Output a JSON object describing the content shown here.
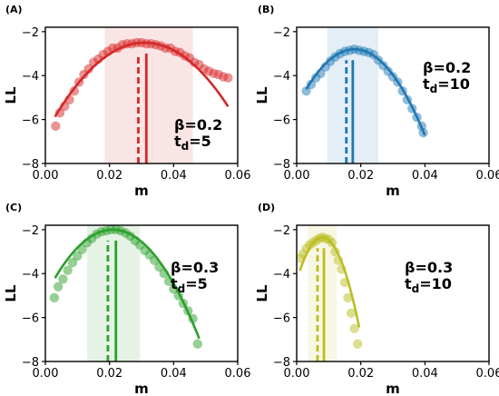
{
  "chart_data": [
    {
      "panel": "(A)",
      "type": "scatter",
      "color": "#d62728",
      "xlabel": "m",
      "ylabel": "LL",
      "xlim": [
        0,
        0.06
      ],
      "ylim": [
        -8,
        -1.8
      ],
      "xticks": [
        "0.00",
        "0.02",
        "0.04",
        "0.06"
      ],
      "yticks": [
        "-2",
        "-4",
        "-6",
        "-8"
      ],
      "x_tick_values": [
        0,
        0.02,
        0.04,
        0.06
      ],
      "y_tick_values": [
        -2,
        -4,
        -6,
        -8
      ],
      "annotation": {
        "beta": "β=0.2",
        "td_base": "t",
        "td_sub": "d",
        "td_val": "=5"
      },
      "shaded_interval": [
        0.0185,
        0.046
      ],
      "dashed_line_x": 0.029,
      "solid_line_x": 0.0315,
      "fit_curve": {
        "peak_x": 0.031,
        "peak_y": -2.5,
        "curvature": 4300,
        "x_range": [
          0.003,
          0.057
        ]
      },
      "points": [
        [
          0.0032,
          -6.3
        ],
        [
          0.0045,
          -5.7
        ],
        [
          0.006,
          -5.4
        ],
        [
          0.0075,
          -5.1
        ],
        [
          0.009,
          -4.7
        ],
        [
          0.0105,
          -4.3
        ],
        [
          0.012,
          -3.95
        ],
        [
          0.0135,
          -3.7
        ],
        [
          0.015,
          -3.4
        ],
        [
          0.0165,
          -3.25
        ],
        [
          0.018,
          -3.05
        ],
        [
          0.0195,
          -2.9
        ],
        [
          0.021,
          -2.75
        ],
        [
          0.0225,
          -2.75
        ],
        [
          0.024,
          -2.6
        ],
        [
          0.0255,
          -2.55
        ],
        [
          0.027,
          -2.55
        ],
        [
          0.0285,
          -2.5
        ],
        [
          0.03,
          -2.5
        ],
        [
          0.0315,
          -2.55
        ],
        [
          0.033,
          -2.55
        ],
        [
          0.0345,
          -2.6
        ],
        [
          0.036,
          -2.65
        ],
        [
          0.0375,
          -2.75
        ],
        [
          0.039,
          -2.75
        ],
        [
          0.0405,
          -2.9
        ],
        [
          0.042,
          -2.95
        ],
        [
          0.0435,
          -3.1
        ],
        [
          0.045,
          -3.2
        ],
        [
          0.0465,
          -3.4
        ],
        [
          0.048,
          -3.5
        ],
        [
          0.0495,
          -3.7
        ],
        [
          0.051,
          -3.8
        ],
        [
          0.0525,
          -3.9
        ],
        [
          0.054,
          -3.95
        ],
        [
          0.0555,
          -4.05
        ],
        [
          0.057,
          -4.1
        ]
      ]
    },
    {
      "panel": "(B)",
      "type": "scatter",
      "color": "#1f77b4",
      "xlabel": "m",
      "ylabel": "LL",
      "xlim": [
        0,
        0.06
      ],
      "ylim": [
        -8,
        -1.8
      ],
      "xticks": [
        "0.00",
        "0.02",
        "0.04",
        "0.06"
      ],
      "yticks": [
        "-2",
        "-4",
        "-6",
        "-8"
      ],
      "x_tick_values": [
        0,
        0.02,
        0.04,
        0.06
      ],
      "y_tick_values": [
        -2,
        -4,
        -6,
        -8
      ],
      "annotation": {
        "beta": "β=0.2",
        "td_base": "t",
        "td_sub": "d",
        "td_val": "=10"
      },
      "shaded_interval": [
        0.0095,
        0.0255
      ],
      "dashed_line_x": 0.0155,
      "solid_line_x": 0.0175,
      "fit_curve": {
        "peak_x": 0.018,
        "peak_y": -2.8,
        "curvature": 8100,
        "x_range": [
          0.003,
          0.04
        ]
      },
      "points": [
        [
          0.003,
          -4.7
        ],
        [
          0.0045,
          -4.4
        ],
        [
          0.006,
          -4.1
        ],
        [
          0.0075,
          -3.9
        ],
        [
          0.009,
          -3.6
        ],
        [
          0.0105,
          -3.35
        ],
        [
          0.012,
          -3.15
        ],
        [
          0.0135,
          -3.0
        ],
        [
          0.015,
          -2.9
        ],
        [
          0.0165,
          -2.85
        ],
        [
          0.018,
          -2.8
        ],
        [
          0.0195,
          -2.85
        ],
        [
          0.021,
          -2.9
        ],
        [
          0.0225,
          -2.95
        ],
        [
          0.024,
          -3.05
        ],
        [
          0.0255,
          -3.3
        ],
        [
          0.027,
          -3.55
        ],
        [
          0.0285,
          -3.8
        ],
        [
          0.03,
          -4.05
        ],
        [
          0.0315,
          -4.3
        ],
        [
          0.033,
          -4.7
        ],
        [
          0.0345,
          -5.1
        ],
        [
          0.036,
          -5.5
        ],
        [
          0.0375,
          -5.9
        ],
        [
          0.039,
          -6.3
        ],
        [
          0.0395,
          -6.6
        ]
      ]
    },
    {
      "panel": "(C)",
      "type": "scatter",
      "color": "#2ca02c",
      "xlabel": "m",
      "ylabel": "LL",
      "xlim": [
        0,
        0.06
      ],
      "ylim": [
        -8,
        -1.8
      ],
      "xticks": [
        "0.00",
        "0.02",
        "0.04",
        "0.06"
      ],
      "yticks": [
        "-2",
        "-4",
        "-6",
        "-8"
      ],
      "x_tick_values": [
        0,
        0.02,
        0.04,
        0.06
      ],
      "y_tick_values": [
        -2,
        -4,
        -6,
        -8
      ],
      "annotation": {
        "beta": "β=0.3",
        "td_base": "t",
        "td_sub": "d",
        "td_val": "=5"
      },
      "shaded_interval": [
        0.013,
        0.0295
      ],
      "dashed_line_x": 0.0195,
      "solid_line_x": 0.022,
      "fit_curve": {
        "peak_x": 0.021,
        "peak_y": -2.0,
        "curvature": 6800,
        "x_range": [
          0.003,
          0.048
        ]
      },
      "points": [
        [
          0.0028,
          -5.1
        ],
        [
          0.004,
          -4.6
        ],
        [
          0.0055,
          -4.25
        ],
        [
          0.007,
          -3.85
        ],
        [
          0.0085,
          -3.5
        ],
        [
          0.01,
          -3.2
        ],
        [
          0.0115,
          -2.9
        ],
        [
          0.013,
          -2.6
        ],
        [
          0.0145,
          -2.4
        ],
        [
          0.016,
          -2.2
        ],
        [
          0.0175,
          -2.1
        ],
        [
          0.019,
          -2.05
        ],
        [
          0.0205,
          -2.0
        ],
        [
          0.022,
          -2.0
        ],
        [
          0.0235,
          -2.05
        ],
        [
          0.025,
          -2.15
        ],
        [
          0.0265,
          -2.3
        ],
        [
          0.028,
          -2.5
        ],
        [
          0.0295,
          -2.7
        ],
        [
          0.031,
          -2.95
        ],
        [
          0.0325,
          -3.15
        ],
        [
          0.034,
          -3.4
        ],
        [
          0.0355,
          -3.7
        ],
        [
          0.037,
          -4.0
        ],
        [
          0.0385,
          -4.35
        ],
        [
          0.04,
          -4.7
        ],
        [
          0.0415,
          -5.0
        ],
        [
          0.043,
          -5.35
        ],
        [
          0.0445,
          -5.7
        ],
        [
          0.046,
          -6.05
        ],
        [
          0.0475,
          -7.2
        ]
      ]
    },
    {
      "panel": "(D)",
      "type": "scatter",
      "color": "#bcbd22",
      "xlabel": "m",
      "ylabel": "LL",
      "xlim": [
        0,
        0.06
      ],
      "ylim": [
        -8,
        -1.8
      ],
      "xticks": [
        "0.00",
        "0.02",
        "0.04",
        "0.06"
      ],
      "yticks": [
        "-2",
        "-4",
        "-6",
        "-8"
      ],
      "x_tick_values": [
        0,
        0.02,
        0.04,
        0.06
      ],
      "y_tick_values": [
        -2,
        -4,
        -6,
        -8
      ],
      "annotation": {
        "beta": "β=0.3",
        "td_base": "t",
        "td_sub": "d",
        "td_val": "=10"
      },
      "shaded_interval": [
        0.0035,
        0.0125
      ],
      "dashed_line_x": 0.0065,
      "solid_line_x": 0.0085,
      "fit_curve": {
        "peak_x": 0.008,
        "peak_y": -2.35,
        "curvature": 31000,
        "x_range": [
          0.001,
          0.0195
        ]
      },
      "points": [
        [
          0.0012,
          -3.3
        ],
        [
          0.002,
          -3.1
        ],
        [
          0.003,
          -2.85
        ],
        [
          0.004,
          -2.7
        ],
        [
          0.005,
          -2.6
        ],
        [
          0.006,
          -2.5
        ],
        [
          0.007,
          -2.4
        ],
        [
          0.008,
          -2.35
        ],
        [
          0.009,
          -2.4
        ],
        [
          0.01,
          -2.45
        ],
        [
          0.011,
          -2.6
        ],
        [
          0.012,
          -3.0
        ],
        [
          0.013,
          -3.4
        ],
        [
          0.014,
          -3.8
        ],
        [
          0.015,
          -4.4
        ],
        [
          0.016,
          -5.1
        ],
        [
          0.017,
          -5.8
        ],
        [
          0.018,
          -6.5
        ],
        [
          0.019,
          -7.2
        ]
      ]
    }
  ]
}
